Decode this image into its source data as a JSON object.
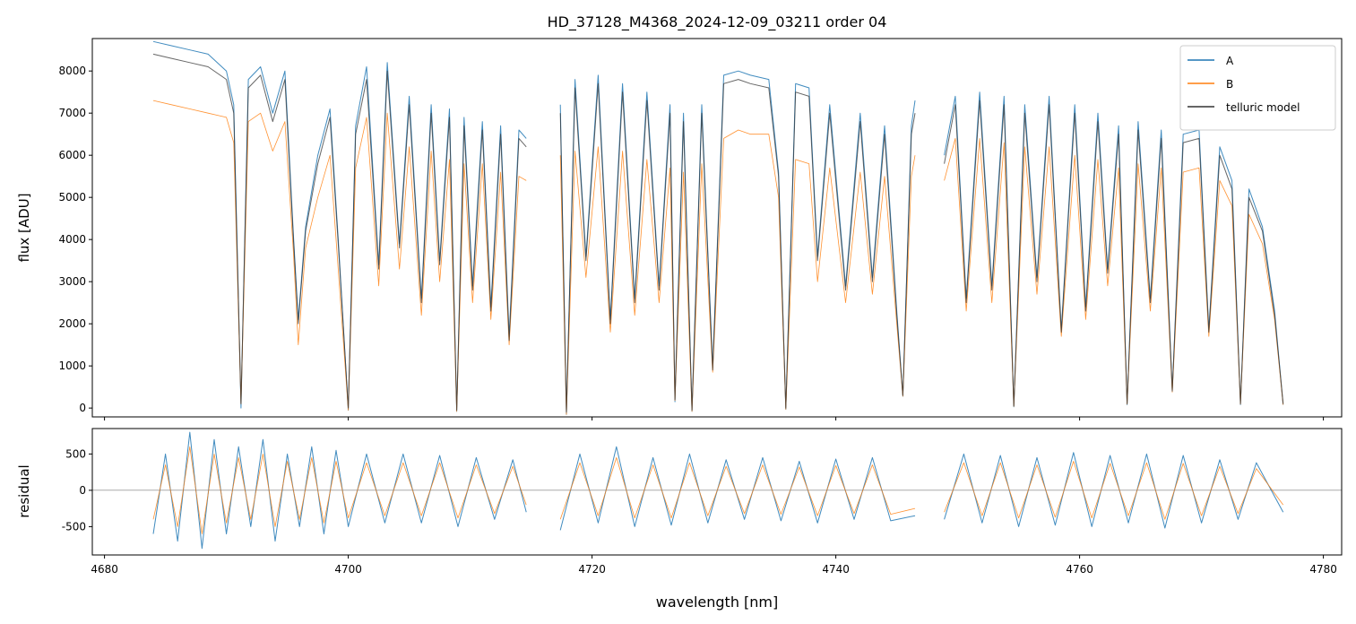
{
  "chart_data": [
    {
      "type": "line",
      "title": "HD_37128_M4368_2024-12-09_03211  order 04",
      "y_label": "flux [ADU]",
      "xlim": [
        4679.0,
        4781.5
      ],
      "xticks": [
        4680,
        4700,
        4720,
        4740,
        4760,
        4780
      ],
      "ylim": [
        -210,
        8770
      ],
      "yticks": [
        0,
        1000,
        2000,
        3000,
        4000,
        5000,
        6000,
        7000,
        8000
      ],
      "legend": "upper right",
      "x": [
        4684.0,
        4685.5,
        4687.0,
        4688.5,
        4690.0,
        4690.6,
        4691.2,
        4691.8,
        4692.8,
        4693.8,
        4694.8,
        4695.5,
        4695.9,
        4696.5,
        4697.5,
        4698.5,
        4699.2,
        4700.0,
        4700.6,
        4701.5,
        4702.5,
        4703.2,
        4704.2,
        4705.0,
        4706.0,
        4706.8,
        4707.5,
        4708.3,
        4708.9,
        4709.5,
        4710.2,
        4711.0,
        4711.7,
        4712.5,
        4713.2,
        4714.0,
        4714.6,
        4716.0,
        4717.4,
        4717.9,
        4718.6,
        4719.5,
        4720.5,
        4721.5,
        4722.5,
        4723.5,
        4724.5,
        4725.5,
        4726.4,
        4726.8,
        4727.5,
        4728.2,
        4729.0,
        4729.9,
        4730.8,
        4732.0,
        4733.0,
        4734.5,
        4735.3,
        4735.9,
        4736.7,
        4737.8,
        4738.5,
        4739.5,
        4740.8,
        4742.0,
        4743.0,
        4744.0,
        4745.0,
        4745.5,
        4746.2,
        4746.5,
        4747.7,
        4748.9,
        4749.8,
        4750.7,
        4751.8,
        4752.8,
        4753.8,
        4754.6,
        4755.5,
        4756.5,
        4757.5,
        4758.5,
        4759.6,
        4760.5,
        4761.5,
        4762.3,
        4763.2,
        4763.9,
        4764.8,
        4765.8,
        4766.7,
        4767.6,
        4768.5,
        4769.8,
        4770.6,
        4771.5,
        4772.5,
        4773.2,
        4773.9,
        4775.0,
        4776.0,
        4776.7
      ],
      "series": [
        {
          "name": "A",
          "color": "#1f77b4",
          "values": [
            8700,
            8600,
            8500,
            8400,
            8000,
            7200,
            0,
            7800,
            8100,
            7000,
            8000,
            4100,
            2100,
            4300,
            6000,
            7100,
            3900,
            -50,
            6700,
            8100,
            3400,
            8200,
            3900,
            7400,
            2600,
            7200,
            3500,
            7100,
            -80,
            6900,
            2900,
            6800,
            2400,
            6700,
            1700,
            6600,
            6400,
            null,
            7200,
            -150,
            7800,
            3600,
            7900,
            2100,
            7700,
            2600,
            7500,
            2900,
            7200,
            150,
            7000,
            -80,
            7200,
            950,
            7900,
            8000,
            7900,
            7800,
            5600,
            -30,
            7700,
            7600,
            3600,
            7200,
            2900,
            7000,
            3100,
            6700,
            2300,
            280,
            6700,
            7300,
            null,
            6000,
            7400,
            2600,
            7500,
            2900,
            7400,
            30,
            7200,
            3100,
            7400,
            1850,
            7200,
            2400,
            7000,
            3300,
            6700,
            80,
            6800,
            2600,
            6600,
            420,
            6500,
            6600,
            1850,
            6200,
            5400,
            80,
            5200,
            4300,
            2300,
            80
          ]
        },
        {
          "name": "B",
          "color": "#ff7f0e",
          "values": [
            7300,
            7200,
            7100,
            7000,
            6900,
            6300,
            100,
            6800,
            7000,
            6100,
            6800,
            3700,
            1500,
            3800,
            5000,
            6000,
            3200,
            -50,
            5700,
            6900,
            2900,
            7000,
            3300,
            6200,
            2200,
            6100,
            3000,
            5900,
            -80,
            5800,
            2500,
            5800,
            2100,
            5600,
            1500,
            5500,
            5400,
            null,
            6000,
            -150,
            6100,
            3100,
            6200,
            1800,
            6100,
            2200,
            5900,
            2500,
            5700,
            180,
            5600,
            -80,
            5800,
            850,
            6400,
            6600,
            6500,
            6500,
            5000,
            -30,
            5900,
            5800,
            3000,
            5700,
            2500,
            5600,
            2700,
            5500,
            2000,
            280,
            5500,
            6000,
            null,
            5400,
            6400,
            2300,
            6400,
            2500,
            6300,
            40,
            6200,
            2700,
            6200,
            1700,
            6000,
            2100,
            5900,
            2900,
            5700,
            90,
            5800,
            2300,
            5700,
            380,
            5600,
            5700,
            1700,
            5400,
            4800,
            90,
            4600,
            3900,
            2100,
            80
          ]
        },
        {
          "name": "telluric model",
          "color": "#333333",
          "values": [
            8400,
            8300,
            8200,
            8100,
            7800,
            7000,
            100,
            7600,
            7900,
            6800,
            7800,
            4000,
            2000,
            4200,
            5800,
            6900,
            3800,
            0,
            6500,
            7800,
            3300,
            8000,
            3800,
            7200,
            2500,
            7000,
            3400,
            6900,
            -50,
            6700,
            2800,
            6600,
            2300,
            6500,
            1600,
            6400,
            6200,
            null,
            7000,
            -100,
            7600,
            3500,
            7700,
            2000,
            7500,
            2500,
            7300,
            2800,
            7000,
            200,
            6800,
            -50,
            7000,
            900,
            7700,
            7800,
            7700,
            7600,
            5500,
            0,
            7500,
            7400,
            3500,
            7000,
            2800,
            6800,
            3000,
            6500,
            2200,
            300,
            6500,
            7000,
            null,
            5800,
            7200,
            2500,
            7300,
            2800,
            7200,
            50,
            7000,
            3000,
            7200,
            1800,
            7000,
            2300,
            6800,
            3200,
            6500,
            100,
            6600,
            2500,
            6400,
            400,
            6300,
            6400,
            1800,
            6000,
            5200,
            100,
            5000,
            4200,
            2200,
            100
          ]
        }
      ]
    },
    {
      "type": "line",
      "x_label": "wavelength [nm]",
      "y_label": "residual",
      "xlim": [
        4679.0,
        4781.5
      ],
      "xticks": [
        4680,
        4700,
        4720,
        4740,
        4760,
        4780
      ],
      "ylim": [
        -890,
        850
      ],
      "yticks": [
        -500,
        0,
        500
      ],
      "axhline": 0,
      "x": [
        4684.0,
        4685.0,
        4686.0,
        4687.0,
        4688.0,
        4689.0,
        4690.0,
        4691.0,
        4692.0,
        4693.0,
        4694.0,
        4695.0,
        4696.0,
        4697.0,
        4698.0,
        4699.0,
        4700.0,
        4701.5,
        4703.0,
        4704.5,
        4706.0,
        4707.5,
        4709.0,
        4710.5,
        4712.0,
        4713.5,
        4714.6,
        4716.0,
        4717.4,
        4719.0,
        4720.5,
        4722.0,
        4723.5,
        4725.0,
        4726.5,
        4728.0,
        4729.5,
        4731.0,
        4732.5,
        4734.0,
        4735.5,
        4737.0,
        4738.5,
        4740.0,
        4741.5,
        4743.0,
        4744.5,
        4746.5,
        4747.7,
        4748.9,
        4750.5,
        4752.0,
        4753.5,
        4755.0,
        4756.5,
        4758.0,
        4759.5,
        4761.0,
        4762.5,
        4764.0,
        4765.5,
        4767.0,
        4768.5,
        4770.0,
        4771.5,
        4773.0,
        4774.5,
        4776.7
      ],
      "series": [
        {
          "name": "A",
          "color": "#1f77b4",
          "values": [
            -600,
            500,
            -700,
            800,
            -800,
            700,
            -600,
            600,
            -500,
            700,
            -700,
            500,
            -500,
            600,
            -600,
            550,
            -500,
            500,
            -450,
            500,
            -450,
            480,
            -500,
            450,
            -400,
            420,
            -300,
            null,
            -550,
            500,
            -450,
            600,
            -500,
            450,
            -480,
            500,
            -450,
            420,
            -400,
            450,
            -420,
            400,
            -450,
            430,
            -400,
            450,
            -420,
            -350,
            null,
            -400,
            500,
            -450,
            480,
            -500,
            450,
            -480,
            520,
            -500,
            480,
            -450,
            500,
            -520,
            480,
            -450,
            420,
            -400,
            380,
            -300
          ]
        },
        {
          "name": "B",
          "color": "#ff7f0e",
          "values": [
            -400,
            350,
            -500,
            600,
            -600,
            500,
            -450,
            450,
            -400,
            500,
            -500,
            400,
            -400,
            450,
            -450,
            400,
            -380,
            380,
            -350,
            380,
            -350,
            380,
            -380,
            350,
            -320,
            330,
            -200,
            null,
            -400,
            380,
            -350,
            450,
            -380,
            350,
            -380,
            380,
            -350,
            330,
            -320,
            350,
            -330,
            320,
            -350,
            340,
            -320,
            350,
            -330,
            -250,
            null,
            -300,
            380,
            -350,
            380,
            -380,
            350,
            -370,
            400,
            -380,
            370,
            -350,
            380,
            -400,
            370,
            -350,
            330,
            -320,
            300,
            -200
          ]
        }
      ]
    }
  ]
}
